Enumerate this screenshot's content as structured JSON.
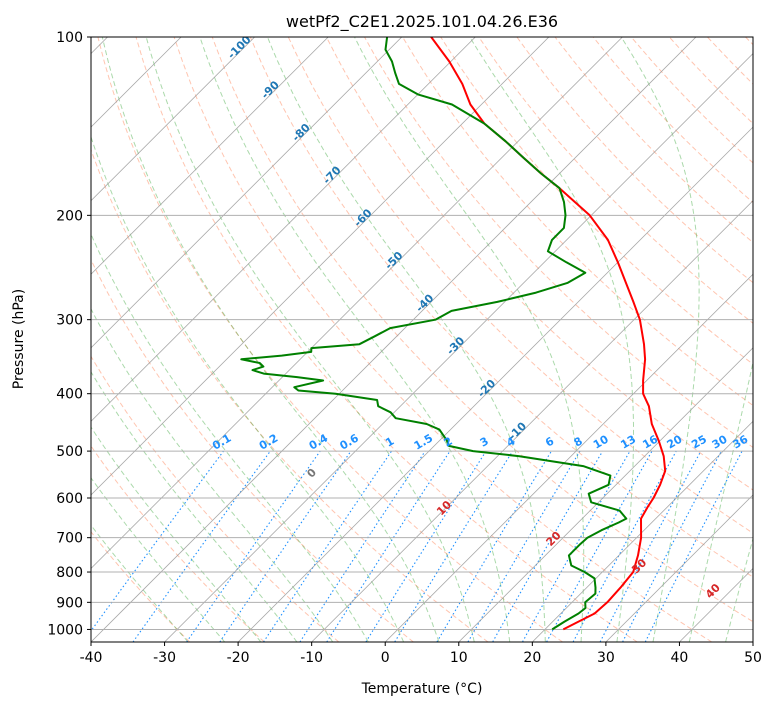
{
  "chart_data": {
    "type": "line",
    "subtype": "skew-t log-p diagram",
    "title": "wetPf2_C2E1.2025.101.04.26.E36",
    "xlabel": "Temperature (°C)",
    "ylabel": "Pressure (hPa)",
    "xlim": [
      -40,
      50
    ],
    "ylim": [
      1050,
      100
    ],
    "y_scale": "log",
    "grid": true,
    "x_ticks": [
      -40,
      -30,
      -20,
      -10,
      0,
      10,
      20,
      30,
      40,
      50
    ],
    "y_ticks": [
      1000,
      900,
      800,
      700,
      600,
      500,
      400,
      300,
      200,
      100
    ],
    "series": [
      {
        "name": "",
        "color": "#ff0000",
        "points": [
          {
            "p": 1000,
            "t": 22.5
          },
          {
            "p": 970,
            "t": 23.5
          },
          {
            "p": 940,
            "t": 24.6
          },
          {
            "p": 900,
            "t": 24.8
          },
          {
            "p": 850,
            "t": 24.6
          },
          {
            "p": 800,
            "t": 24.2
          },
          {
            "p": 750,
            "t": 22.6
          },
          {
            "p": 700,
            "t": 20.6
          },
          {
            "p": 650,
            "t": 18.0
          },
          {
            "p": 620,
            "t": 17.3
          },
          {
            "p": 600,
            "t": 16.9
          },
          {
            "p": 570,
            "t": 16.0
          },
          {
            "p": 540,
            "t": 14.8
          },
          {
            "p": 510,
            "t": 12.6
          },
          {
            "p": 480,
            "t": 9.8
          },
          {
            "p": 450,
            "t": 6.6
          },
          {
            "p": 420,
            "t": 3.8
          },
          {
            "p": 400,
            "t": 1.3
          },
          {
            "p": 380,
            "t": -0.5
          },
          {
            "p": 350,
            "t": -3.1
          },
          {
            "p": 330,
            "t": -5.3
          },
          {
            "p": 300,
            "t": -9.2
          },
          {
            "p": 280,
            "t": -12.5
          },
          {
            "p": 260,
            "t": -16.1
          },
          {
            "p": 240,
            "t": -20.0
          },
          {
            "p": 220,
            "t": -24.4
          },
          {
            "p": 200,
            "t": -30.2
          },
          {
            "p": 190,
            "t": -34.0
          },
          {
            "p": 180,
            "t": -38.0
          },
          {
            "p": 170,
            "t": -42.5
          },
          {
            "p": 160,
            "t": -47.0
          },
          {
            "p": 150,
            "t": -51.7
          },
          {
            "p": 140,
            "t": -57.0
          },
          {
            "p": 130,
            "t": -61.5
          },
          {
            "p": 120,
            "t": -65.4
          },
          {
            "p": 110,
            "t": -70.2
          },
          {
            "p": 100,
            "t": -76.0
          }
        ]
      },
      {
        "name": "",
        "color": "#008000",
        "points": [
          {
            "p": 1000,
            "t": 21.0
          },
          {
            "p": 970,
            "t": 21.6
          },
          {
            "p": 940,
            "t": 22.4
          },
          {
            "p": 920,
            "t": 22.6
          },
          {
            "p": 900,
            "t": 21.8
          },
          {
            "p": 870,
            "t": 22.0
          },
          {
            "p": 850,
            "t": 21.2
          },
          {
            "p": 820,
            "t": 19.8
          },
          {
            "p": 800,
            "t": 17.6
          },
          {
            "p": 780,
            "t": 14.9
          },
          {
            "p": 750,
            "t": 13.2
          },
          {
            "p": 720,
            "t": 13.2
          },
          {
            "p": 700,
            "t": 13.3
          },
          {
            "p": 680,
            "t": 14.2
          },
          {
            "p": 660,
            "t": 15.5
          },
          {
            "p": 650,
            "t": 16.0
          },
          {
            "p": 630,
            "t": 14.0
          },
          {
            "p": 610,
            "t": 9.0
          },
          {
            "p": 590,
            "t": 7.5
          },
          {
            "p": 570,
            "t": 9.0
          },
          {
            "p": 550,
            "t": 8.0
          },
          {
            "p": 530,
            "t": 3.0
          },
          {
            "p": 510,
            "t": -7.0
          },
          {
            "p": 500,
            "t": -14.0
          },
          {
            "p": 490,
            "t": -18.0
          },
          {
            "p": 480,
            "t": -19.0
          },
          {
            "p": 460,
            "t": -21.5
          },
          {
            "p": 450,
            "t": -24.0
          },
          {
            "p": 440,
            "t": -29.0
          },
          {
            "p": 430,
            "t": -30.5
          },
          {
            "p": 420,
            "t": -33.0
          },
          {
            "p": 410,
            "t": -34.0
          },
          {
            "p": 400,
            "t": -40.5
          },
          {
            "p": 395,
            "t": -46.0
          },
          {
            "p": 390,
            "t": -47.0
          },
          {
            "p": 380,
            "t": -44.0
          },
          {
            "p": 375,
            "t": -48.0
          },
          {
            "p": 370,
            "t": -53.0
          },
          {
            "p": 365,
            "t": -55.0
          },
          {
            "p": 360,
            "t": -54.0
          },
          {
            "p": 355,
            "t": -55.0
          },
          {
            "p": 350,
            "t": -58.0
          },
          {
            "p": 345,
            "t": -53.0
          },
          {
            "p": 340,
            "t": -49.5
          },
          {
            "p": 335,
            "t": -50.0
          },
          {
            "p": 330,
            "t": -44.0
          },
          {
            "p": 320,
            "t": -43.0
          },
          {
            "p": 310,
            "t": -42.0
          },
          {
            "p": 300,
            "t": -37.0
          },
          {
            "p": 290,
            "t": -36.0
          },
          {
            "p": 280,
            "t": -31.0
          },
          {
            "p": 270,
            "t": -27.0
          },
          {
            "p": 260,
            "t": -24.0
          },
          {
            "p": 250,
            "t": -23.0
          },
          {
            "p": 240,
            "t": -27.0
          },
          {
            "p": 230,
            "t": -31.0
          },
          {
            "p": 220,
            "t": -32.0
          },
          {
            "p": 210,
            "t": -32.0
          },
          {
            "p": 200,
            "t": -33.5
          },
          {
            "p": 190,
            "t": -35.5
          },
          {
            "p": 180,
            "t": -38.0
          },
          {
            "p": 170,
            "t": -42.5
          },
          {
            "p": 160,
            "t": -47.0
          },
          {
            "p": 150,
            "t": -51.7
          },
          {
            "p": 140,
            "t": -57.0
          },
          {
            "p": 130,
            "t": -64.0
          },
          {
            "p": 125,
            "t": -70.0
          },
          {
            "p": 120,
            "t": -74.0
          },
          {
            "p": 115,
            "t": -76.0
          },
          {
            "p": 110,
            "t": -78.0
          },
          {
            "p": 105,
            "t": -80.5
          },
          {
            "p": 100,
            "t": -82.0
          }
        ]
      }
    ],
    "isotherm_labels": [
      "-100",
      "-90",
      "-80",
      "-70",
      "-60",
      "-50",
      "-40",
      "-30",
      "-20",
      "-10"
    ],
    "isotherm_label_values": [
      -100,
      -90,
      -80,
      -70,
      -60,
      -50,
      -40,
      -30,
      -20,
      -10
    ],
    "moist_adiabat_labels": [
      "0",
      "10",
      "20",
      "30",
      "40"
    ],
    "moist_adiabat_label_values": [
      0,
      10,
      20,
      30,
      40
    ],
    "mixing_ratio_labels": [
      "0.1",
      "0.2",
      "0.4",
      "0.6",
      "1",
      "1.5",
      "2",
      "3",
      "4",
      "6",
      "8",
      "10",
      "13",
      "16",
      "20",
      "25",
      "30",
      "36"
    ],
    "mixing_ratio_values": [
      0.1,
      0.2,
      0.4,
      0.6,
      1,
      1.5,
      2,
      3,
      4,
      6,
      8,
      10,
      13,
      16,
      20,
      25,
      30,
      36
    ],
    "colors": {
      "temperature": "#ff0000",
      "dewpoint": "#008000",
      "isotherm_lines": "#999999",
      "isotherm_text": "#1f77b4",
      "dry_adiabat": "#ff7f50",
      "moist_adiabat": "#2ca02c",
      "mixing_ratio": "#1e90ff",
      "moist_label_text": "#d62728",
      "gridlines": "#b0b0b0"
    }
  }
}
